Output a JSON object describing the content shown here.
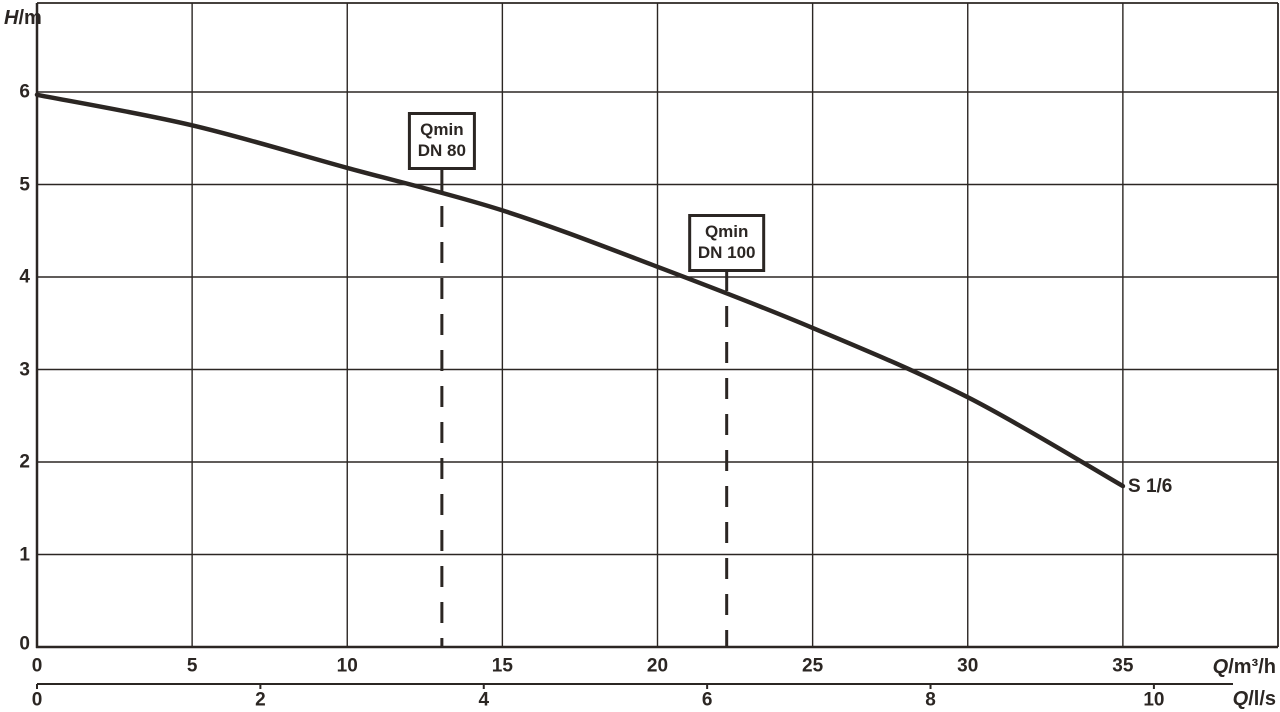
{
  "colors": {
    "stroke": "#2b2623",
    "background": "#ffffff"
  },
  "axis_labels": {
    "y_var": "H",
    "y_unit": "/m",
    "x_primary_var": "Q",
    "x_primary_unit": "/m³/h",
    "x_secondary_var": "Q",
    "x_secondary_unit": "/l/s"
  },
  "chart_data": {
    "type": "line",
    "title": "",
    "ylabel": "H/m",
    "xlabel_primary": "Q/m³/h",
    "xlabel_secondary": "Q/l/s",
    "ylim": [
      0,
      6.96
    ],
    "xlim_m3h": [
      0,
      40
    ],
    "xlim_ls": [
      0,
      11.1
    ],
    "grid": true,
    "y_ticks": [
      0,
      1,
      2,
      3,
      4,
      5,
      6
    ],
    "x_ticks_m3h": [
      0,
      5,
      10,
      15,
      20,
      25,
      30,
      35
    ],
    "x_ticks_ls": [
      0,
      2,
      4,
      6,
      8,
      10
    ],
    "series": [
      {
        "name": "S 1/6",
        "x_m3h": [
          0,
          5,
          10,
          15,
          20,
          25,
          30,
          35
        ],
        "y_h": [
          5.97,
          5.64,
          5.18,
          4.72,
          4.11,
          3.45,
          2.7,
          1.74
        ]
      }
    ],
    "curve_label": "S 1/6",
    "annotations": [
      {
        "line1": "Qmin",
        "line2": "DN 80",
        "x_m3h": 13.05
      },
      {
        "line1": "Qmin",
        "line2": "DN 100",
        "x_m3h": 22.23
      }
    ]
  }
}
